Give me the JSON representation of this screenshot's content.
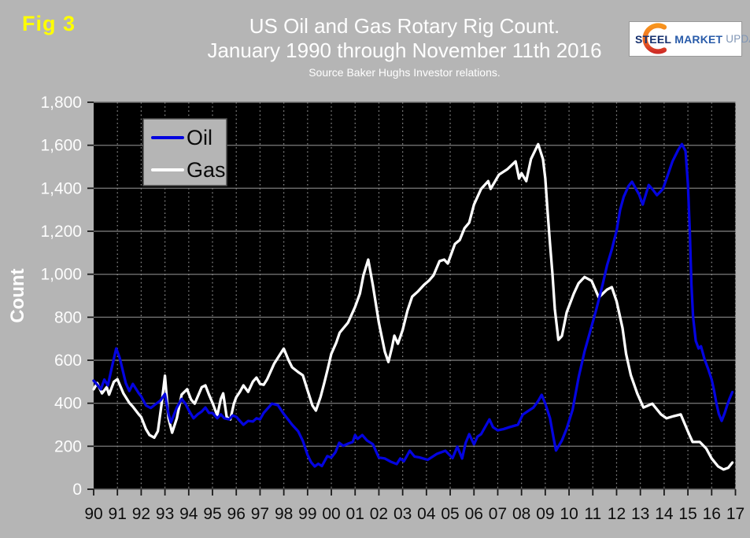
{
  "header": {
    "fig_label": "Fig 3",
    "title_line1": "US Oil and Gas Rotary Rig Count.",
    "title_line2": "January 1990 through November 11th 2016",
    "source": "Source Baker Hughs Investor relations.",
    "logo": {
      "steel": "STEEL",
      "market": " MARKET",
      "update": " UPDATE"
    }
  },
  "colors": {
    "page_bg": "#b5b5b5",
    "plot_bg": "#000000",
    "grid_h": "#6f6f6f",
    "grid_v": "#8f8f8f",
    "tick": "#1a1a1a",
    "y_label": "#fdfdfd",
    "x_label": "#0d0d0d",
    "oil": "#0404df",
    "gas": "#ffffff",
    "fig_label": "#ffff00",
    "title": "#ffffff",
    "legend_bg": "#b5b5b5",
    "legend_border": "#4a4a4a",
    "logo_orange": "#f7941d",
    "logo_red": "#cf2e27"
  },
  "chart_data": {
    "type": "line",
    "title": "US Oil and Gas Rotary Rig Count.",
    "subtitle": "January 1990 through November 11th 2016",
    "source": "Source Baker Hughs Investor relations.",
    "xlabel": "",
    "ylabel": "Count",
    "x_unit": "year (monthly resolution, Jan 1990 - Nov 11 2016)",
    "xlim": [
      1990,
      2017
    ],
    "ylim": [
      0,
      1800
    ],
    "grid": {
      "horizontal": "solid",
      "vertical": "dashed"
    },
    "legend_position": "top-left-inset",
    "yticks": [
      0,
      200,
      400,
      600,
      800,
      1000,
      1200,
      1400,
      1600,
      1800
    ],
    "ytick_labels": [
      "0",
      "200",
      "400",
      "600",
      "800",
      "1,000",
      "1,200",
      "1,400",
      "1,600",
      "1,800"
    ],
    "xticks": [
      1990,
      1991,
      1992,
      1993,
      1994,
      1995,
      1996,
      1997,
      1998,
      1999,
      2000,
      2001,
      2002,
      2003,
      2004,
      2005,
      2006,
      2007,
      2008,
      2009,
      2010,
      2011,
      2012,
      2013,
      2014,
      2015,
      2016,
      2017
    ],
    "xtick_labels": [
      "90",
      "91",
      "92",
      "93",
      "94",
      "95",
      "96",
      "97",
      "98",
      "99",
      "00",
      "01",
      "02",
      "03",
      "04",
      "05",
      "06",
      "07",
      "08",
      "09",
      "10",
      "11",
      "12",
      "13",
      "14",
      "15",
      "16",
      "17"
    ],
    "series": [
      {
        "name": "Gas",
        "color": "#ffffff",
        "points": [
          [
            1990.0,
            465
          ],
          [
            1990.15,
            494
          ],
          [
            1990.35,
            446
          ],
          [
            1990.55,
            475
          ],
          [
            1990.65,
            440
          ],
          [
            1990.85,
            500
          ],
          [
            1991.0,
            512
          ],
          [
            1991.25,
            446
          ],
          [
            1991.5,
            402
          ],
          [
            1991.65,
            384
          ],
          [
            1991.9,
            348
          ],
          [
            1992.0,
            336
          ],
          [
            1992.2,
            280
          ],
          [
            1992.35,
            252
          ],
          [
            1992.55,
            240
          ],
          [
            1992.7,
            270
          ],
          [
            1992.85,
            390
          ],
          [
            1993.0,
            528
          ],
          [
            1993.15,
            330
          ],
          [
            1993.3,
            263
          ],
          [
            1993.5,
            330
          ],
          [
            1993.7,
            440
          ],
          [
            1993.93,
            465
          ],
          [
            1994.1,
            417
          ],
          [
            1994.25,
            398
          ],
          [
            1994.55,
            475
          ],
          [
            1994.7,
            483
          ],
          [
            1994.85,
            440
          ],
          [
            1995.0,
            402
          ],
          [
            1995.2,
            343
          ],
          [
            1995.35,
            420
          ],
          [
            1995.45,
            446
          ],
          [
            1995.6,
            336
          ],
          [
            1995.75,
            325
          ],
          [
            1995.9,
            398
          ],
          [
            1996.0,
            428
          ],
          [
            1996.15,
            453
          ],
          [
            1996.3,
            483
          ],
          [
            1996.5,
            453
          ],
          [
            1996.7,
            501
          ],
          [
            1996.85,
            519
          ],
          [
            1997.0,
            490
          ],
          [
            1997.15,
            486
          ],
          [
            1997.3,
            512
          ],
          [
            1997.6,
            585
          ],
          [
            1997.8,
            620
          ],
          [
            1998.0,
            654
          ],
          [
            1998.2,
            600
          ],
          [
            1998.35,
            567
          ],
          [
            1998.6,
            545
          ],
          [
            1998.8,
            530
          ],
          [
            1999.0,
            460
          ],
          [
            1999.2,
            390
          ],
          [
            1999.35,
            366
          ],
          [
            1999.55,
            430
          ],
          [
            1999.7,
            494
          ],
          [
            1999.85,
            560
          ],
          [
            2000.0,
            630
          ],
          [
            2000.2,
            680
          ],
          [
            2000.35,
            728
          ],
          [
            2000.7,
            775
          ],
          [
            2001.0,
            848
          ],
          [
            2001.2,
            910
          ],
          [
            2001.35,
            995
          ],
          [
            2001.55,
            1068
          ],
          [
            2001.75,
            947
          ],
          [
            2002.0,
            775
          ],
          [
            2002.25,
            640
          ],
          [
            2002.4,
            592
          ],
          [
            2002.55,
            660
          ],
          [
            2002.65,
            714
          ],
          [
            2002.8,
            677
          ],
          [
            2003.0,
            740
          ],
          [
            2003.2,
            830
          ],
          [
            2003.4,
            896
          ],
          [
            2003.65,
            921
          ],
          [
            2003.9,
            951
          ],
          [
            2004.1,
            970
          ],
          [
            2004.3,
            995
          ],
          [
            2004.55,
            1061
          ],
          [
            2004.75,
            1068
          ],
          [
            2004.9,
            1050
          ],
          [
            2005.2,
            1141
          ],
          [
            2005.4,
            1159
          ],
          [
            2005.6,
            1214
          ],
          [
            2005.8,
            1240
          ],
          [
            2006.0,
            1324
          ],
          [
            2006.3,
            1397
          ],
          [
            2006.6,
            1433
          ],
          [
            2006.7,
            1397
          ],
          [
            2007.05,
            1463
          ],
          [
            2007.4,
            1488
          ],
          [
            2007.75,
            1525
          ],
          [
            2007.9,
            1445
          ],
          [
            2008.0,
            1470
          ],
          [
            2008.2,
            1433
          ],
          [
            2008.4,
            1536
          ],
          [
            2008.7,
            1605
          ],
          [
            2008.9,
            1536
          ],
          [
            2009.0,
            1445
          ],
          [
            2009.1,
            1287
          ],
          [
            2009.2,
            1141
          ],
          [
            2009.3,
            1006
          ],
          [
            2009.4,
            838
          ],
          [
            2009.55,
            695
          ],
          [
            2009.7,
            713
          ],
          [
            2009.9,
            823
          ],
          [
            2010.2,
            910
          ],
          [
            2010.4,
            958
          ],
          [
            2010.65,
            987
          ],
          [
            2010.95,
            969
          ],
          [
            2011.25,
            892
          ],
          [
            2011.6,
            929
          ],
          [
            2011.8,
            940
          ],
          [
            2012.0,
            874
          ],
          [
            2012.25,
            750
          ],
          [
            2012.4,
            629
          ],
          [
            2012.6,
            530
          ],
          [
            2012.87,
            445
          ],
          [
            2013.13,
            380
          ],
          [
            2013.5,
            398
          ],
          [
            2013.87,
            348
          ],
          [
            2014.1,
            330
          ],
          [
            2014.4,
            340
          ],
          [
            2014.7,
            348
          ],
          [
            2015.05,
            256
          ],
          [
            2015.2,
            220
          ],
          [
            2015.5,
            220
          ],
          [
            2015.77,
            190
          ],
          [
            2016.0,
            143
          ],
          [
            2016.27,
            106
          ],
          [
            2016.5,
            92
          ],
          [
            2016.7,
            100
          ],
          [
            2016.87,
            124
          ]
        ]
      },
      {
        "name": "Oil",
        "color": "#0404df",
        "points": [
          [
            1990.0,
            505
          ],
          [
            1990.2,
            480
          ],
          [
            1990.3,
            465
          ],
          [
            1990.45,
            510
          ],
          [
            1990.6,
            483
          ],
          [
            1990.75,
            560
          ],
          [
            1990.95,
            655
          ],
          [
            1991.1,
            610
          ],
          [
            1991.35,
            494
          ],
          [
            1991.5,
            457
          ],
          [
            1991.65,
            490
          ],
          [
            1991.9,
            446
          ],
          [
            1992.0,
            432
          ],
          [
            1992.2,
            390
          ],
          [
            1992.4,
            378
          ],
          [
            1992.6,
            395
          ],
          [
            1992.8,
            412
          ],
          [
            1993.0,
            443
          ],
          [
            1993.15,
            350
          ],
          [
            1993.25,
            311
          ],
          [
            1993.5,
            380
          ],
          [
            1993.7,
            420
          ],
          [
            1993.86,
            398
          ],
          [
            1994.03,
            362
          ],
          [
            1994.2,
            330
          ],
          [
            1994.37,
            348
          ],
          [
            1994.55,
            362
          ],
          [
            1994.7,
            380
          ],
          [
            1994.85,
            355
          ],
          [
            1995.0,
            355
          ],
          [
            1995.2,
            330
          ],
          [
            1995.35,
            348
          ],
          [
            1995.5,
            330
          ],
          [
            1995.7,
            325
          ],
          [
            1995.85,
            343
          ],
          [
            1996.0,
            337
          ],
          [
            1996.15,
            318
          ],
          [
            1996.3,
            300
          ],
          [
            1996.5,
            318
          ],
          [
            1996.7,
            315
          ],
          [
            1996.85,
            330
          ],
          [
            1997.0,
            325
          ],
          [
            1997.15,
            355
          ],
          [
            1997.3,
            373
          ],
          [
            1997.5,
            398
          ],
          [
            1997.75,
            391
          ],
          [
            1998.0,
            350
          ],
          [
            1998.35,
            300
          ],
          [
            1998.6,
            270
          ],
          [
            1998.8,
            225
          ],
          [
            1999.0,
            160
          ],
          [
            1999.15,
            125
          ],
          [
            1999.3,
            106
          ],
          [
            1999.45,
            118
          ],
          [
            1999.6,
            108
          ],
          [
            1999.83,
            154
          ],
          [
            2000.0,
            147
          ],
          [
            2000.17,
            172
          ],
          [
            2000.33,
            216
          ],
          [
            2000.5,
            202
          ],
          [
            2000.7,
            212
          ],
          [
            2000.9,
            220
          ],
          [
            2001.0,
            252
          ],
          [
            2001.1,
            234
          ],
          [
            2001.3,
            252
          ],
          [
            2001.5,
            227
          ],
          [
            2001.75,
            209
          ],
          [
            2002.0,
            147
          ],
          [
            2002.25,
            143
          ],
          [
            2002.5,
            128
          ],
          [
            2002.75,
            117
          ],
          [
            2002.9,
            143
          ],
          [
            2003.05,
            130
          ],
          [
            2003.3,
            179
          ],
          [
            2003.5,
            152
          ],
          [
            2003.7,
            148
          ],
          [
            2004.05,
            137
          ],
          [
            2004.45,
            165
          ],
          [
            2004.8,
            179
          ],
          [
            2005.1,
            145
          ],
          [
            2005.3,
            198
          ],
          [
            2005.5,
            143
          ],
          [
            2005.65,
            216
          ],
          [
            2005.8,
            256
          ],
          [
            2006.0,
            209
          ],
          [
            2006.15,
            245
          ],
          [
            2006.3,
            256
          ],
          [
            2006.65,
            325
          ],
          [
            2006.8,
            289
          ],
          [
            2007.0,
            274
          ],
          [
            2007.25,
            280
          ],
          [
            2007.5,
            289
          ],
          [
            2007.85,
            300
          ],
          [
            2008.05,
            347
          ],
          [
            2008.25,
            362
          ],
          [
            2008.5,
            380
          ],
          [
            2008.7,
            410
          ],
          [
            2008.85,
            439
          ],
          [
            2009.0,
            398
          ],
          [
            2009.2,
            330
          ],
          [
            2009.35,
            238
          ],
          [
            2009.45,
            180
          ],
          [
            2009.7,
            227
          ],
          [
            2009.9,
            282
          ],
          [
            2010.15,
            370
          ],
          [
            2010.4,
            520
          ],
          [
            2010.65,
            640
          ],
          [
            2010.9,
            739
          ],
          [
            2011.15,
            838
          ],
          [
            2011.4,
            947
          ],
          [
            2011.6,
            1042
          ],
          [
            2011.8,
            1115
          ],
          [
            2012.0,
            1203
          ],
          [
            2012.15,
            1300
          ],
          [
            2012.3,
            1360
          ],
          [
            2012.5,
            1410
          ],
          [
            2012.65,
            1430
          ],
          [
            2012.8,
            1400
          ],
          [
            2012.95,
            1370
          ],
          [
            2013.1,
            1324
          ],
          [
            2013.35,
            1415
          ],
          [
            2013.55,
            1390
          ],
          [
            2013.7,
            1368
          ],
          [
            2013.95,
            1397
          ],
          [
            2014.15,
            1460
          ],
          [
            2014.35,
            1525
          ],
          [
            2014.6,
            1580
          ],
          [
            2014.75,
            1605
          ],
          [
            2014.9,
            1573
          ],
          [
            2015.0,
            1420
          ],
          [
            2015.08,
            1200
          ],
          [
            2015.15,
            950
          ],
          [
            2015.22,
            800
          ],
          [
            2015.33,
            690
          ],
          [
            2015.45,
            655
          ],
          [
            2015.55,
            665
          ],
          [
            2015.7,
            605
          ],
          [
            2015.85,
            560
          ],
          [
            2016.0,
            510
          ],
          [
            2016.1,
            460
          ],
          [
            2016.2,
            400
          ],
          [
            2016.3,
            350
          ],
          [
            2016.42,
            318
          ],
          [
            2016.55,
            355
          ],
          [
            2016.65,
            390
          ],
          [
            2016.75,
            420
          ],
          [
            2016.87,
            452
          ]
        ]
      }
    ],
    "legend": [
      {
        "label": "Oil",
        "color": "#0404df"
      },
      {
        "label": "Gas",
        "color": "#ffffff"
      }
    ]
  }
}
